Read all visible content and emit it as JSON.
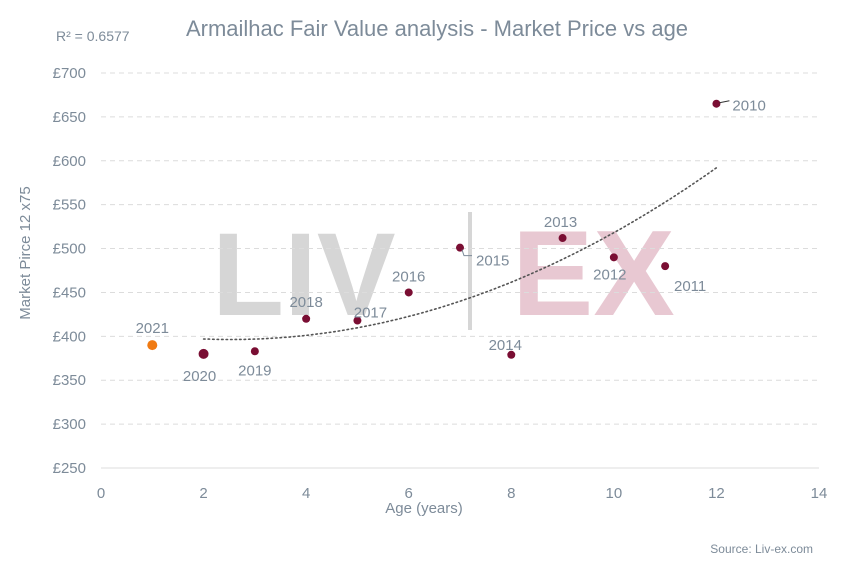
{
  "chart_data": {
    "type": "scatter",
    "title": "Armailhac Fair Value analysis - Market Price vs age",
    "r_squared_label": "R² = 0.6577",
    "xlabel": "Age (years)",
    "ylabel": "Market Pirce 12 x75",
    "source": "Source: Liv-ex.com",
    "watermark": {
      "left": "LIV",
      "right": "EX"
    },
    "xlim": [
      0,
      14
    ],
    "ylim": [
      250,
      700
    ],
    "x_ticks": [
      0,
      2,
      4,
      6,
      8,
      10,
      12,
      14
    ],
    "y_ticks": [
      250,
      300,
      350,
      400,
      450,
      500,
      550,
      600,
      650,
      700
    ],
    "y_tick_labels": [
      "£250",
      "£300",
      "£350",
      "£400",
      "£450",
      "£500",
      "£550",
      "£600",
      "£650",
      "£700"
    ],
    "grid": "horizontal dashed",
    "colors": {
      "points": "#7a0e33",
      "highlight": "#f07a12",
      "trendline": "#555555",
      "grid": "#dcdcdc",
      "text": "#7d8b99",
      "watermark_grey": "#d6d6d6",
      "watermark_pink": "#e8c8d2"
    },
    "points": [
      {
        "label": "2021",
        "x": 1,
        "y": 390,
        "highlight": true
      },
      {
        "label": "2020",
        "x": 2,
        "y": 380
      },
      {
        "label": "2019",
        "x": 3,
        "y": 383
      },
      {
        "label": "2018",
        "x": 4,
        "y": 420
      },
      {
        "label": "2017",
        "x": 5,
        "y": 418
      },
      {
        "label": "2016",
        "x": 6,
        "y": 450
      },
      {
        "label": "2015",
        "x": 7,
        "y": 501
      },
      {
        "label": "2014",
        "x": 8,
        "y": 379
      },
      {
        "label": "2013",
        "x": 9,
        "y": 512
      },
      {
        "label": "2012",
        "x": 10,
        "y": 490
      },
      {
        "label": "2011",
        "x": 11,
        "y": 480
      },
      {
        "label": "2010",
        "x": 12,
        "y": 665
      }
    ],
    "trendline": {
      "type": "polynomial",
      "x_range": [
        2,
        12
      ],
      "y_at": [
        {
          "x": 2,
          "y": 397
        },
        {
          "x": 7,
          "y": 440
        },
        {
          "x": 12,
          "y": 592
        }
      ]
    }
  }
}
